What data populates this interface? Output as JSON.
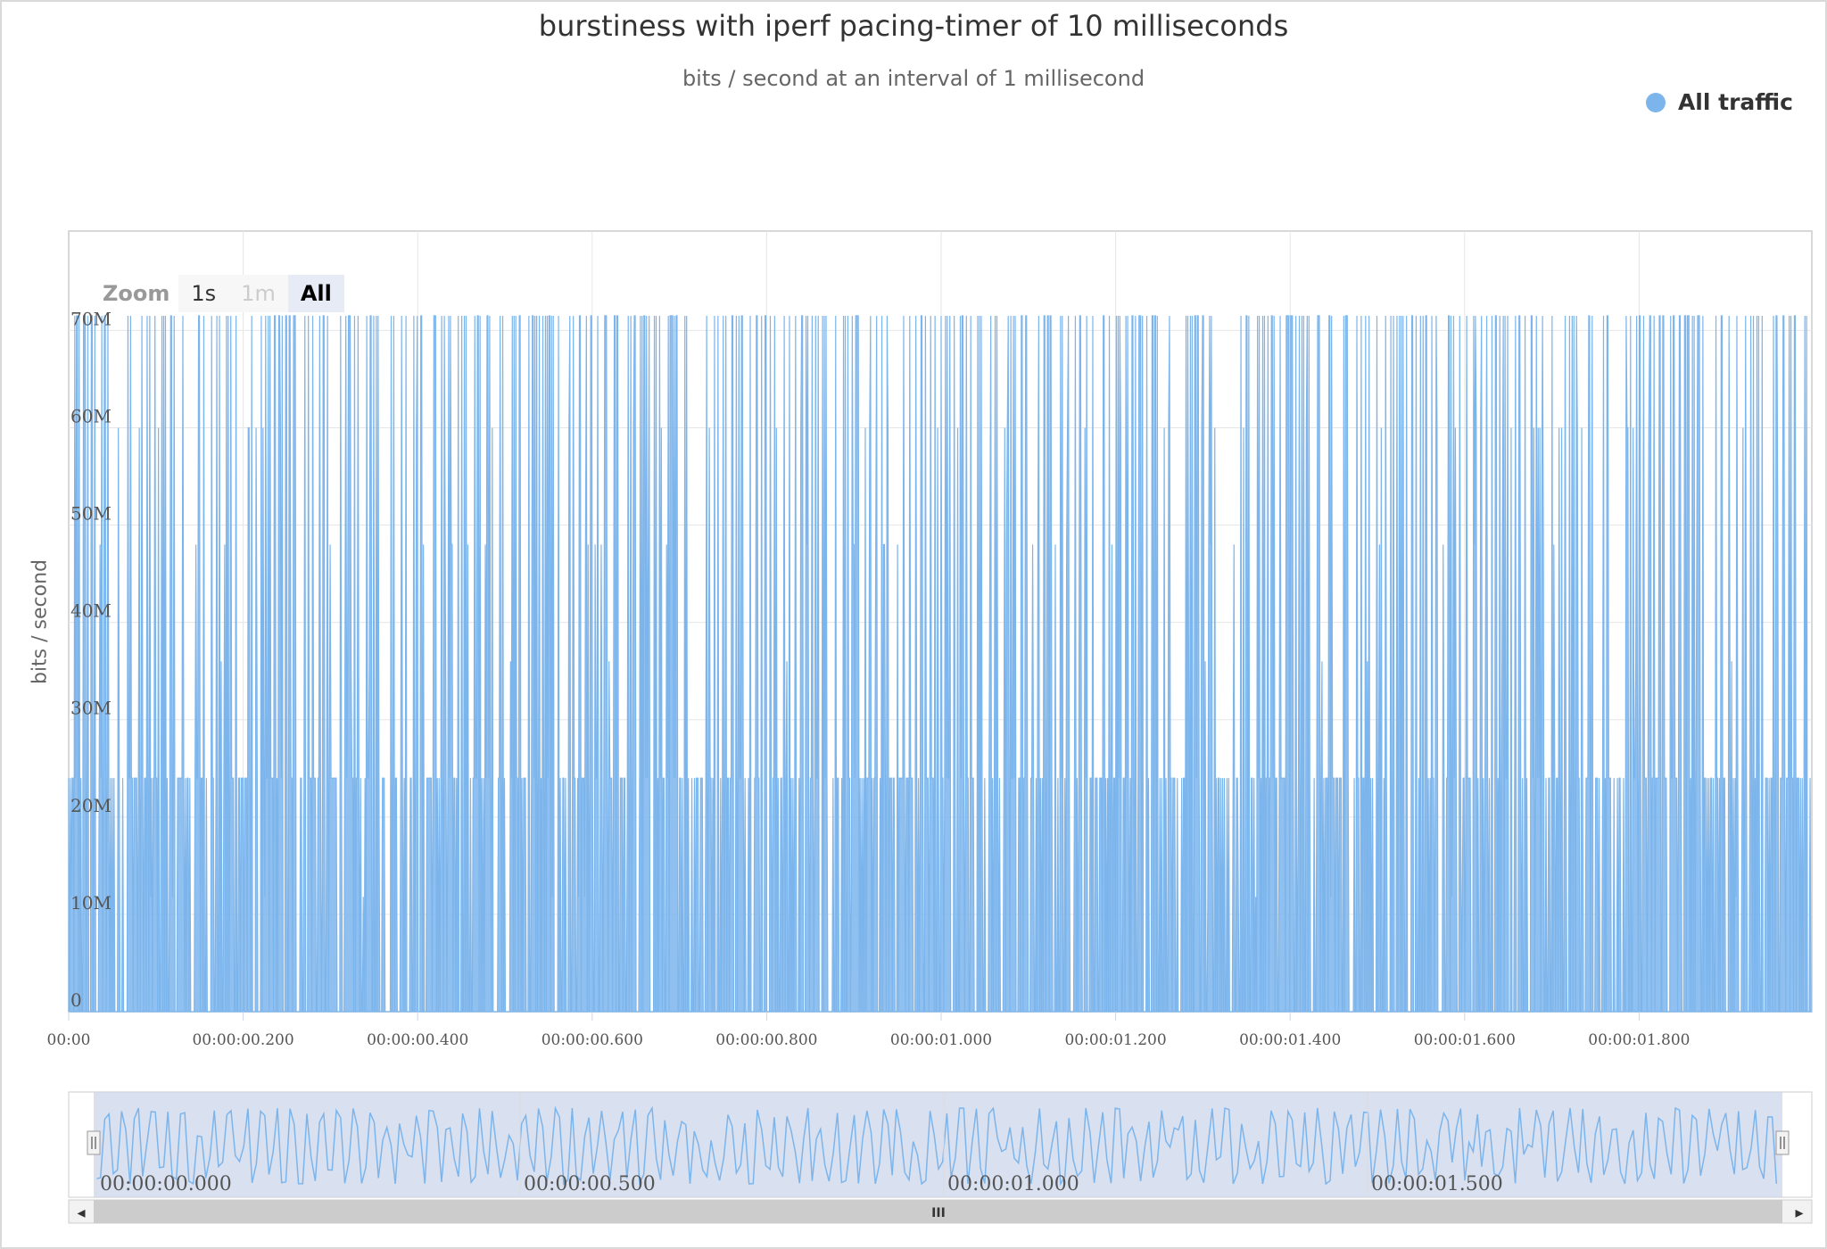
{
  "chart_data": {
    "type": "area",
    "title": "burstiness with iperf pacing-timer of 10 milliseconds",
    "subtitle": "bits / second at an interval of 1 millisecond",
    "ylabel": "bits / second",
    "xlabel": "",
    "ylim": [
      0,
      80000000
    ],
    "xlim": [
      0,
      2.0
    ],
    "y_ticks": [
      "0",
      "10M",
      "20M",
      "30M",
      "40M",
      "50M",
      "60M",
      "70M"
    ],
    "x_ticks": [
      "00:00",
      "00:00:00.200",
      "00:00:00.400",
      "00:00:00.600",
      "00:00:00.800",
      "00:00:01.000",
      "00:00:01.200",
      "00:00:01.400",
      "00:00:01.600",
      "00:00:01.800"
    ],
    "grid": true,
    "legend_position": "top-right",
    "series": [
      {
        "name": "All traffic",
        "color": "#7cb5ec",
        "pattern_description_levels_bps": [
          0,
          11800000,
          24000000,
          36000000,
          48000000,
          60000000,
          71500000
        ],
        "sample_interval_seconds": 0.001
      }
    ],
    "navigator": {
      "x_ticks": [
        "00:00:00.000",
        "00:00:00.500",
        "00:00:01.000",
        "00:00:01.500"
      ]
    }
  },
  "range_selector": {
    "label": "Zoom",
    "buttons": [
      "1s",
      "1m",
      "All"
    ],
    "selected": "All",
    "disabled": [
      "1m"
    ]
  },
  "legend": {
    "items": [
      {
        "label": "All traffic",
        "color": "#7cb5ec"
      }
    ]
  },
  "scrollbar": {
    "left_arrow": "◂",
    "right_arrow": "▸",
    "grip": "III"
  }
}
